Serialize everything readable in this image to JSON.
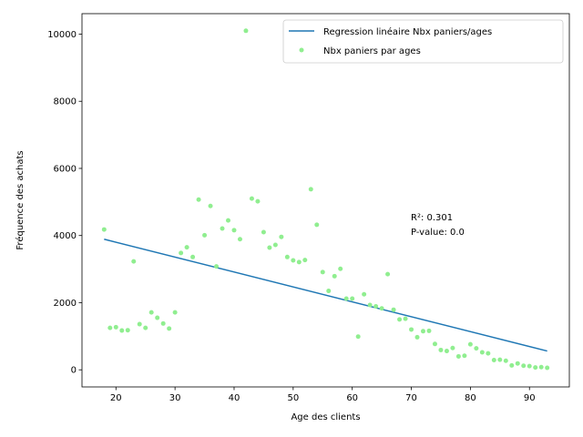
{
  "chart_data": {
    "type": "scatter",
    "xlabel": "Age des clients",
    "ylabel": "Fréquence des achats",
    "xlim": [
      14.25,
      96.75
    ],
    "ylim": [
      -510,
      10610
    ],
    "xticks": [
      20,
      30,
      40,
      50,
      60,
      70,
      80,
      90
    ],
    "yticks": [
      0,
      2000,
      4000,
      6000,
      8000,
      10000
    ],
    "grid": false,
    "legend_position": "top-right",
    "series": [
      {
        "name": "Regression linéaire Nbx paniers/ages",
        "kind": "line",
        "color": "#1f77b4",
        "x": [
          18,
          93
        ],
        "y": [
          3890,
          560
        ]
      },
      {
        "name": "Nbx paniers par ages",
        "kind": "scatter",
        "color": "#90ee90",
        "x": [
          18,
          19,
          20,
          21,
          22,
          23,
          24,
          25,
          26,
          27,
          28,
          29,
          30,
          31,
          32,
          33,
          34,
          35,
          36,
          37,
          38,
          39,
          40,
          41,
          42,
          43,
          44,
          45,
          46,
          47,
          48,
          49,
          50,
          51,
          52,
          53,
          54,
          55,
          56,
          57,
          58,
          59,
          60,
          61,
          62,
          63,
          64,
          65,
          66,
          67,
          68,
          69,
          70,
          71,
          72,
          73,
          74,
          75,
          76,
          77,
          78,
          79,
          80,
          81,
          82,
          83,
          84,
          85,
          86,
          87,
          88,
          89,
          90,
          91,
          92,
          93
        ],
        "y": [
          4180,
          1250,
          1270,
          1170,
          1180,
          3230,
          1360,
          1250,
          1710,
          1550,
          1380,
          1230,
          1710,
          3480,
          3650,
          3360,
          5070,
          4010,
          4880,
          3080,
          4210,
          4450,
          4160,
          3890,
          10100,
          5100,
          5020,
          4100,
          3640,
          3720,
          3960,
          3360,
          3260,
          3210,
          3270,
          5380,
          4320,
          2910,
          2350,
          2790,
          3010,
          2120,
          2120,
          990,
          2250,
          1930,
          1890,
          1830,
          2850,
          1790,
          1500,
          1520,
          1200,
          970,
          1150,
          1160,
          770,
          590,
          560,
          650,
          400,
          420,
          760,
          640,
          520,
          490,
          290,
          300,
          270,
          130,
          190,
          120,
          110,
          70,
          80,
          60
        ]
      }
    ],
    "annotations": [
      "R²: 0.301",
      "P-value: 0.0"
    ]
  }
}
